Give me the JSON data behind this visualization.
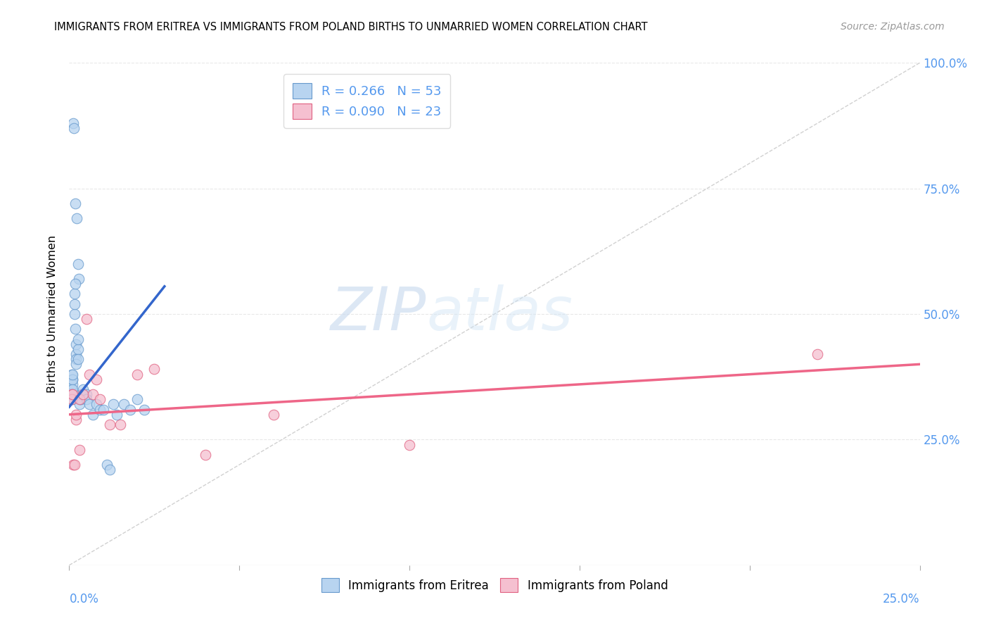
{
  "title": "IMMIGRANTS FROM ERITREA VS IMMIGRANTS FROM POLAND BIRTHS TO UNMARRIED WOMEN CORRELATION CHART",
  "source": "Source: ZipAtlas.com",
  "xmin": 0.0,
  "xmax": 0.25,
  "ymin": 0.0,
  "ymax": 1.0,
  "watermark_zip": "ZIP",
  "watermark_atlas": "atlas",
  "legend_eritrea_r": "R = 0.266",
  "legend_eritrea_n": "N = 53",
  "legend_poland_r": "R = 0.090",
  "legend_poland_n": "N = 23",
  "color_eritrea_fill": "#b8d4f0",
  "color_eritrea_edge": "#6699cc",
  "color_poland_fill": "#f5c0d0",
  "color_poland_edge": "#e06080",
  "color_eritrea_line": "#3366cc",
  "color_poland_line": "#ee6688",
  "color_diag": "#cccccc",
  "color_grid": "#e8e8e8",
  "color_axis_labels": "#5599ee",
  "background_color": "#ffffff",
  "eritrea_x": [
    0.0012,
    0.0013,
    0.0018,
    0.0022,
    0.0025,
    0.0028,
    0.0005,
    0.0005,
    0.0006,
    0.0007,
    0.0008,
    0.0008,
    0.0009,
    0.001,
    0.001,
    0.001,
    0.001,
    0.001,
    0.001,
    0.0015,
    0.0015,
    0.0016,
    0.0017,
    0.0018,
    0.002,
    0.002,
    0.002,
    0.002,
    0.0025,
    0.0025,
    0.0027,
    0.003,
    0.003,
    0.003,
    0.0035,
    0.0035,
    0.004,
    0.004,
    0.005,
    0.005,
    0.006,
    0.007,
    0.008,
    0.009,
    0.01,
    0.011,
    0.012,
    0.013,
    0.014,
    0.016,
    0.018,
    0.02,
    0.022
  ],
  "eritrea_y": [
    0.88,
    0.87,
    0.72,
    0.69,
    0.6,
    0.57,
    0.34,
    0.33,
    0.35,
    0.37,
    0.38,
    0.35,
    0.37,
    0.36,
    0.37,
    0.38,
    0.34,
    0.33,
    0.35,
    0.5,
    0.52,
    0.54,
    0.56,
    0.47,
    0.42,
    0.41,
    0.44,
    0.4,
    0.43,
    0.41,
    0.45,
    0.33,
    0.33,
    0.32,
    0.34,
    0.33,
    0.34,
    0.35,
    0.34,
    0.33,
    0.32,
    0.3,
    0.32,
    0.31,
    0.31,
    0.2,
    0.19,
    0.32,
    0.3,
    0.32,
    0.31,
    0.33,
    0.31
  ],
  "poland_x": [
    0.0007,
    0.0008,
    0.001,
    0.0012,
    0.0015,
    0.002,
    0.002,
    0.003,
    0.003,
    0.004,
    0.005,
    0.006,
    0.007,
    0.008,
    0.009,
    0.012,
    0.015,
    0.02,
    0.025,
    0.04,
    0.06,
    0.1,
    0.22
  ],
  "poland_y": [
    0.34,
    0.33,
    0.34,
    0.2,
    0.2,
    0.29,
    0.3,
    0.23,
    0.33,
    0.34,
    0.49,
    0.38,
    0.34,
    0.37,
    0.33,
    0.28,
    0.28,
    0.38,
    0.39,
    0.22,
    0.3,
    0.24,
    0.42
  ],
  "eritrea_trend_x0": 0.0,
  "eritrea_trend_y0": 0.315,
  "eritrea_trend_x1": 0.028,
  "eritrea_trend_y1": 0.555,
  "poland_trend_x0": 0.0,
  "poland_trend_y0": 0.3,
  "poland_trend_x1": 0.25,
  "poland_trend_y1": 0.4
}
